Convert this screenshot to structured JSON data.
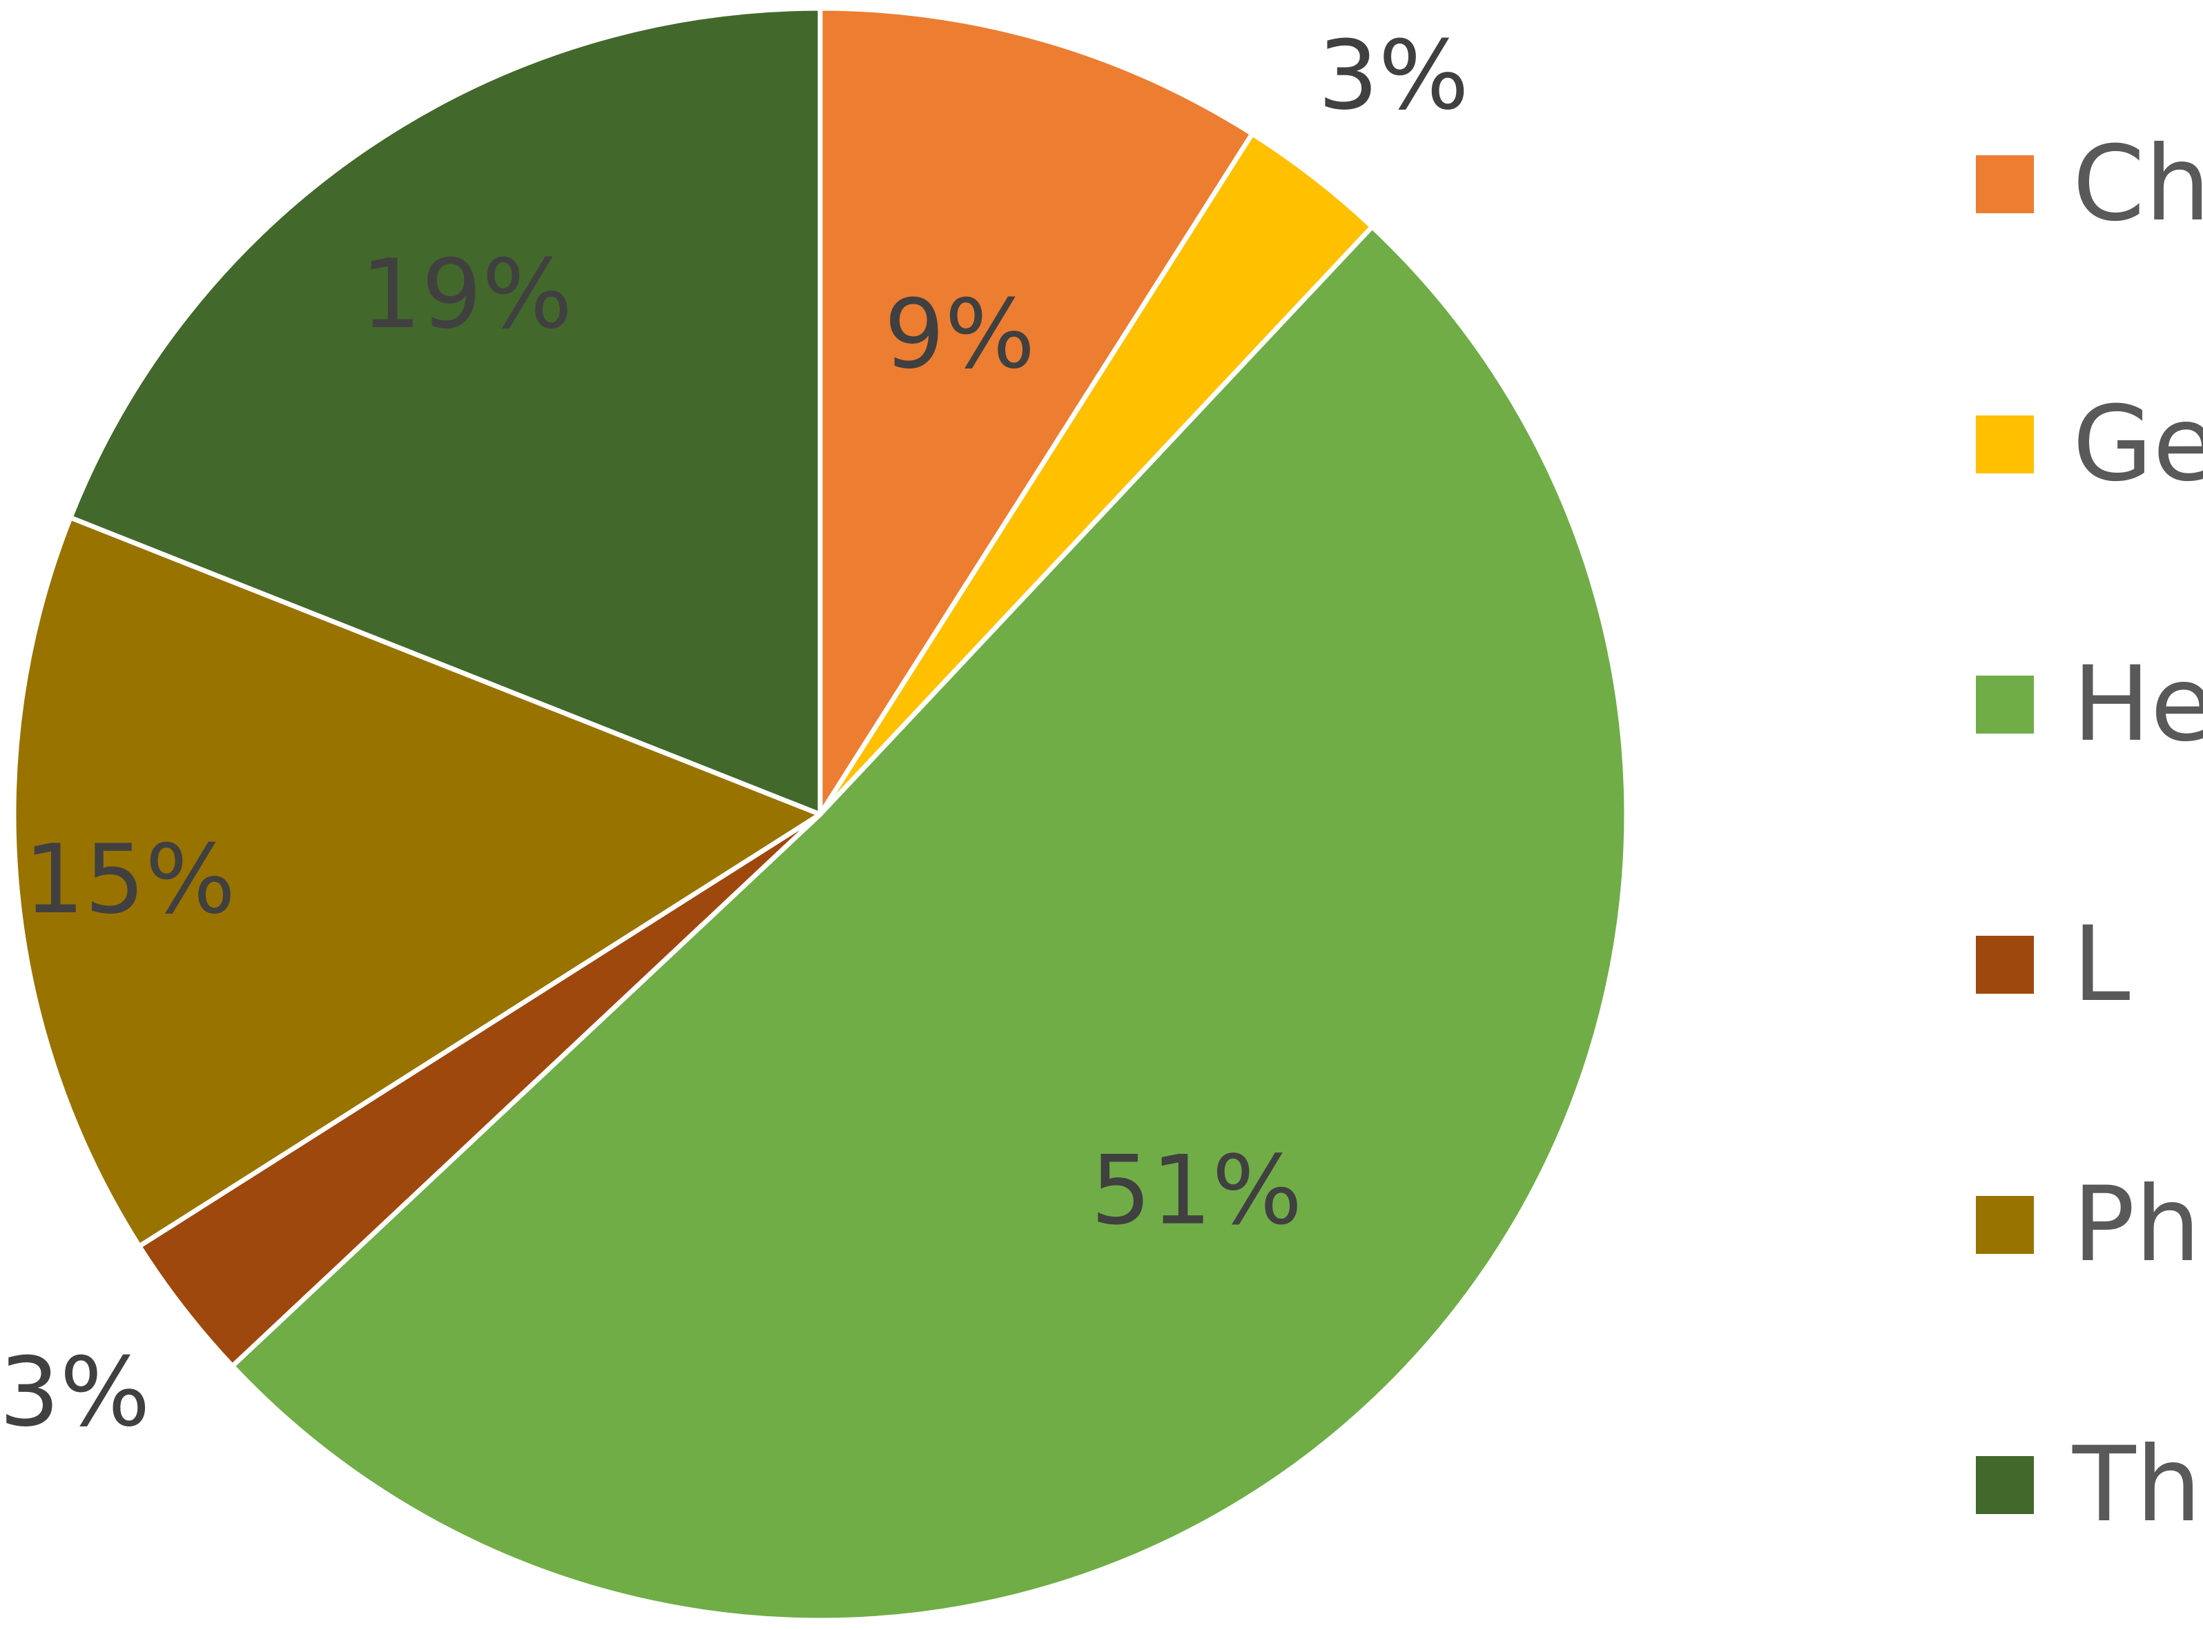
{
  "chart_data": {
    "type": "pie",
    "categories": [
      "Ch",
      "Ge",
      "He",
      "L",
      "Ph",
      "Th"
    ],
    "values": [
      9,
      3,
      51,
      3,
      15,
      19
    ],
    "labels": [
      "9%",
      "3%",
      "51%",
      "3%",
      "15%",
      "19%"
    ],
    "colors": [
      "#ED7D31",
      "#FFC000",
      "#70AD47",
      "#9E480E",
      "#997300",
      "#43682B"
    ],
    "start_angle_deg": 0,
    "direction": "clockwise",
    "legend_position": "right",
    "title": ""
  }
}
